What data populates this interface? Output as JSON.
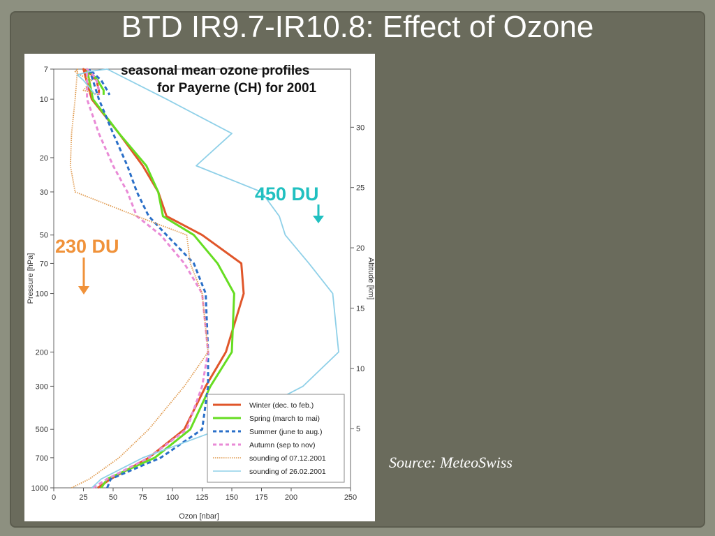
{
  "slide": {
    "title": "BTD IR9.7-IR10.8: Effect of Ozone",
    "source": "Source: MeteoSwiss"
  },
  "colors": {
    "winter": "#e0562a",
    "spring": "#66dd22",
    "summer": "#2a6fc8",
    "autumn": "#e98ad6",
    "sounding1": "#e09a4e",
    "sounding2": "#8fd0e8",
    "anno230": "#f0923a",
    "anno450": "#21c0c0"
  },
  "chart_data": {
    "type": "line",
    "title": "seasonal mean ozone profiles",
    "subtitle": "for Payerne (CH) for 2001",
    "xlabel": "Ozon [nbar]",
    "ylabel": "Pressure [hPa]",
    "y2label": "Altitude [km]",
    "xlim": [
      0,
      250
    ],
    "ylim": [
      1000,
      7
    ],
    "y_scale": "log",
    "x_ticks": [
      "0",
      "25",
      "50",
      "75",
      "100",
      "125",
      "150",
      "175",
      "200",
      "250"
    ],
    "y_ticks": [
      "7",
      "10",
      "20",
      "30",
      "50",
      "70",
      "100",
      "200",
      "300",
      "500",
      "700",
      "1000"
    ],
    "y2_ticks": [
      "30",
      "25",
      "20",
      "15",
      "10",
      "5"
    ],
    "annotations": [
      "230 DU",
      "450 DU"
    ],
    "legend_position": "bottom-right",
    "series": [
      {
        "name": "Winter (dec. to feb.)",
        "x": [
          37,
          48,
          80,
          110,
          128,
          145,
          160,
          158,
          125,
          95,
          88,
          75,
          55,
          32,
          25,
          28,
          32,
          36,
          38,
          38
        ],
        "y": [
          1000,
          900,
          700,
          500,
          300,
          200,
          100,
          70,
          50,
          40,
          30,
          22,
          15,
          10,
          7,
          7.2,
          7.5,
          8,
          9,
          9.5
        ]
      },
      {
        "name": "Spring (march to mai)",
        "x": [
          40,
          45,
          85,
          115,
          132,
          150,
          152,
          138,
          118,
          92,
          88,
          78,
          55,
          33,
          28,
          30,
          33,
          37,
          42,
          42
        ],
        "y": [
          1000,
          900,
          700,
          500,
          300,
          200,
          100,
          70,
          50,
          40,
          30,
          22,
          15,
          10,
          7,
          7.2,
          7.5,
          8,
          9,
          9.5
        ]
      },
      {
        "name": "Summer (june to aug.)",
        "x": [
          45,
          48,
          90,
          125,
          130,
          130,
          128,
          118,
          95,
          80,
          70,
          62,
          50,
          38,
          30,
          32,
          35,
          40,
          45,
          47
        ],
        "y": [
          1000,
          900,
          700,
          500,
          300,
          200,
          100,
          70,
          50,
          40,
          30,
          22,
          15,
          10,
          7,
          7.2,
          7.5,
          8,
          9,
          9.5
        ]
      },
      {
        "name": "Autumn (sep to nov)",
        "x": [
          33,
          45,
          80,
          112,
          125,
          130,
          125,
          110,
          90,
          70,
          62,
          50,
          38,
          28,
          28,
          30,
          33,
          36,
          38,
          38
        ],
        "y": [
          1000,
          900,
          700,
          500,
          300,
          200,
          100,
          70,
          50,
          40,
          30,
          22,
          15,
          10,
          7,
          7.2,
          7.5,
          8,
          9,
          9.5
        ]
      },
      {
        "name": "sounding of 07.12.2001",
        "x": [
          15,
          30,
          55,
          80,
          110,
          130,
          125,
          115,
          112,
          70,
          18,
          14,
          15,
          18,
          20,
          18,
          22,
          32,
          25,
          38
        ],
        "y": [
          1000,
          900,
          700,
          500,
          300,
          200,
          100,
          70,
          50,
          40,
          30,
          22,
          15,
          10,
          7,
          7.2,
          7.5,
          8,
          9,
          9.5
        ]
      },
      {
        "name": "sounding of 26.02.2001",
        "x": [
          32,
          40,
          75,
          140,
          210,
          240,
          235,
          215,
          195,
          190,
          175,
          120,
          150,
          95,
          45,
          30,
          20,
          25,
          32,
          35
        ],
        "y": [
          1000,
          900,
          700,
          500,
          300,
          200,
          100,
          70,
          50,
          40,
          30,
          22,
          15,
          10,
          7,
          7.2,
          7.5,
          8,
          9,
          9.5
        ]
      }
    ]
  }
}
